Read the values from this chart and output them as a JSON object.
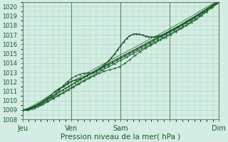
{
  "title": "",
  "xlabel": "Pression niveau de la mer( hPa )",
  "ylabel": "",
  "ylim": [
    1008,
    1020.5
  ],
  "yticks": [
    1008,
    1009,
    1010,
    1011,
    1012,
    1013,
    1014,
    1015,
    1016,
    1017,
    1018,
    1019,
    1020
  ],
  "xlim": [
    0,
    96
  ],
  "xtick_positions": [
    0,
    24,
    48,
    72,
    96
  ],
  "xtick_labels": [
    "Jeu",
    "Ven",
    "Sam",
    "",
    "Dim"
  ],
  "background_color": "#d4ece3",
  "plot_bg_color": "#d4ece3",
  "grid_color": "#a8d4c0",
  "line_color": "#1a5c28",
  "text_color": "#1a5c28",
  "axis_color": "#5a8a6a",
  "n_lines": 6
}
